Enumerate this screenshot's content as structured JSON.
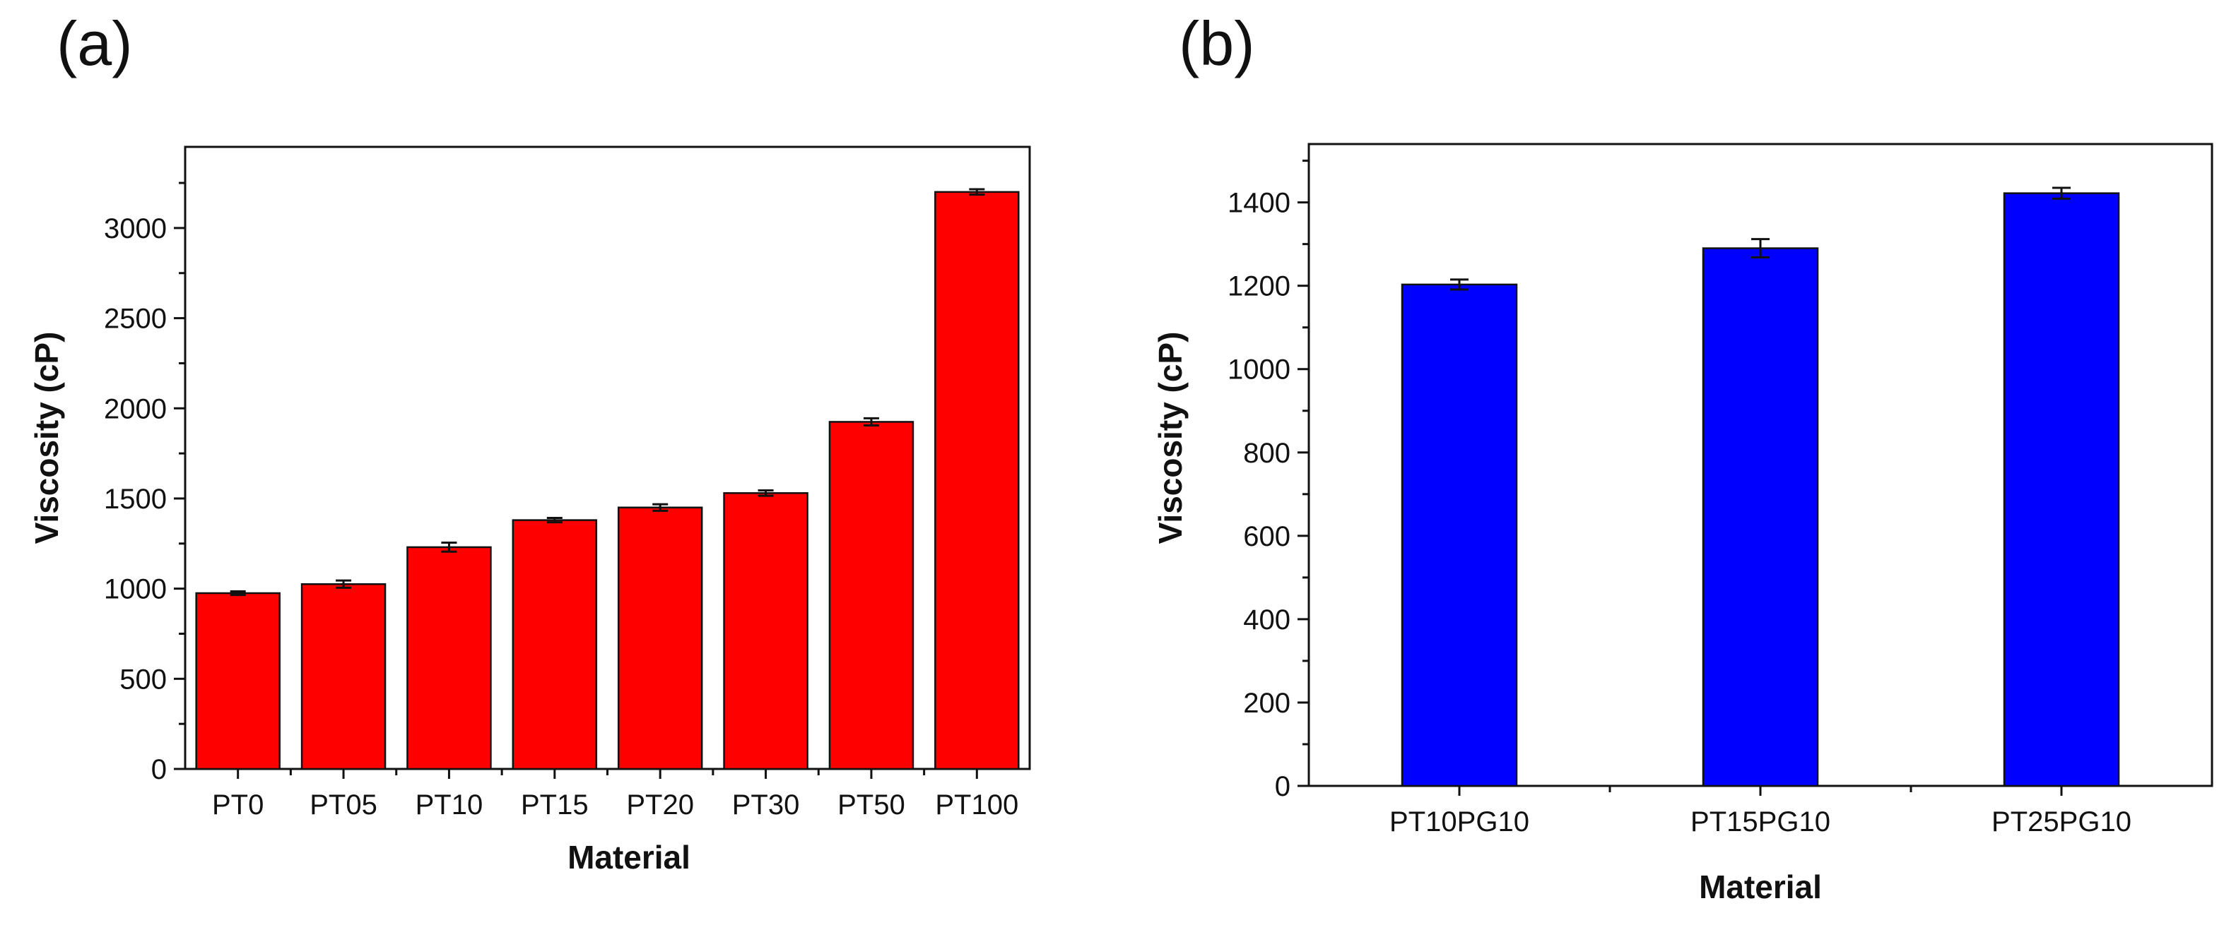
{
  "chart_data": [
    {
      "panel_label": "(a)",
      "type": "bar",
      "xlabel": "Material",
      "ylabel": "Viscosity (cP)",
      "categories": [
        "PT0",
        "PT05",
        "PT10",
        "PT15",
        "PT20",
        "PT30",
        "PT50",
        "PT100"
      ],
      "values": [
        975,
        1025,
        1230,
        1380,
        1450,
        1530,
        1925,
        3200
      ],
      "errors": [
        10,
        20,
        25,
        12,
        18,
        15,
        20,
        15
      ],
      "ylim": [
        0,
        3450
      ],
      "yticks": [
        0,
        500,
        1000,
        1500,
        2000,
        2500,
        3000
      ],
      "bar_color": "#ff0000"
    },
    {
      "panel_label": "(b)",
      "type": "bar",
      "xlabel": "Material",
      "ylabel": "Viscosity (cP)",
      "categories": [
        "PT10PG10",
        "PT15PG10",
        "PT25PG10"
      ],
      "values": [
        1203,
        1290,
        1422
      ],
      "errors": [
        12,
        22,
        13
      ],
      "ylim": [
        0,
        1540
      ],
      "yticks": [
        0,
        200,
        400,
        600,
        800,
        1000,
        1200,
        1400
      ],
      "bar_color": "#0000ff"
    }
  ]
}
